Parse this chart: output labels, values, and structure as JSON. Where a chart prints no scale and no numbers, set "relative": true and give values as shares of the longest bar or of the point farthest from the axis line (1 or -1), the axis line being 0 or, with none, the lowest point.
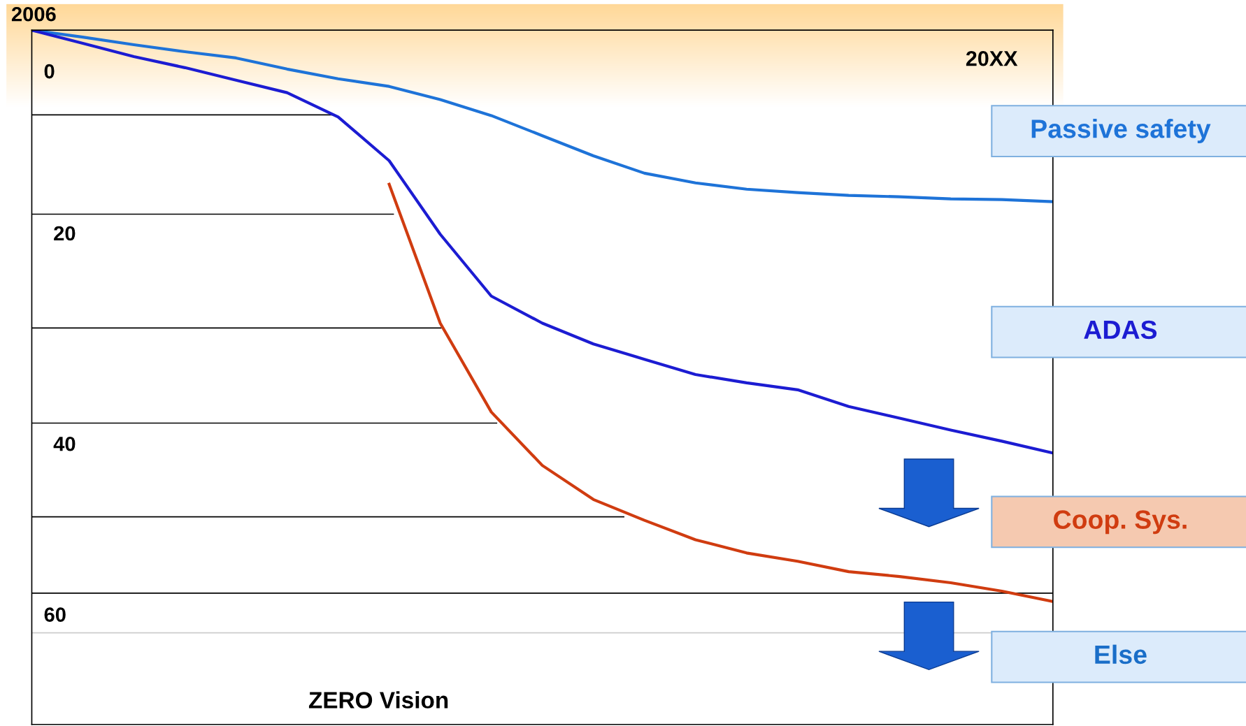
{
  "chart_data": {
    "type": "line",
    "relative": true,
    "categories": [
      null,
      null,
      null,
      null,
      null,
      null,
      null,
      null,
      null,
      null,
      null,
      null,
      null,
      null,
      null,
      null,
      null,
      null,
      null,
      null,
      null
    ],
    "series": [
      {
        "name": "Passive safety",
        "color": "#1e73d8",
        "values": [
          1,
          0.99,
          0.979,
          0.969,
          0.96,
          0.944,
          0.93,
          0.919,
          0.9,
          0.877,
          0.848,
          0.819,
          0.794,
          0.78,
          0.771,
          0.766,
          0.762,
          0.76,
          0.757,
          0.756,
          0.753
        ]
      },
      {
        "name": "ADAS",
        "color": "#1c1cd2",
        "values": [
          1,
          0.981,
          0.962,
          0.946,
          0.928,
          0.91,
          0.875,
          0.812,
          0.706,
          0.617,
          0.578,
          0.548,
          0.526,
          0.504,
          0.492,
          0.482,
          0.458,
          0.441,
          0.424,
          0.408,
          0.391
        ]
      },
      {
        "name": "Coop. Sys.",
        "color": "#d03c10",
        "values": [
          null,
          null,
          null,
          null,
          null,
          null,
          null,
          0.778,
          0.578,
          0.45,
          0.373,
          0.324,
          0.294,
          0.266,
          0.247,
          0.235,
          0.22,
          0.213,
          0.204,
          0.192,
          0.177
        ]
      }
    ],
    "ref_lines": [
      {
        "axis": "y",
        "value": 0.878
      },
      {
        "axis": "y",
        "value": 0.735
      },
      {
        "axis": "y",
        "value": 0.571
      },
      {
        "axis": "y",
        "value": 0.434
      },
      {
        "axis": "y",
        "value": 0.299
      },
      {
        "axis": "y",
        "value": 0.189
      },
      {
        "axis": "y",
        "value": 0.132,
        "color": "#cccccc"
      }
    ],
    "annotations": [
      "2006",
      "20XX",
      "0",
      "20",
      "40",
      "60",
      "ZERO Vision",
      "Else"
    ]
  }
}
